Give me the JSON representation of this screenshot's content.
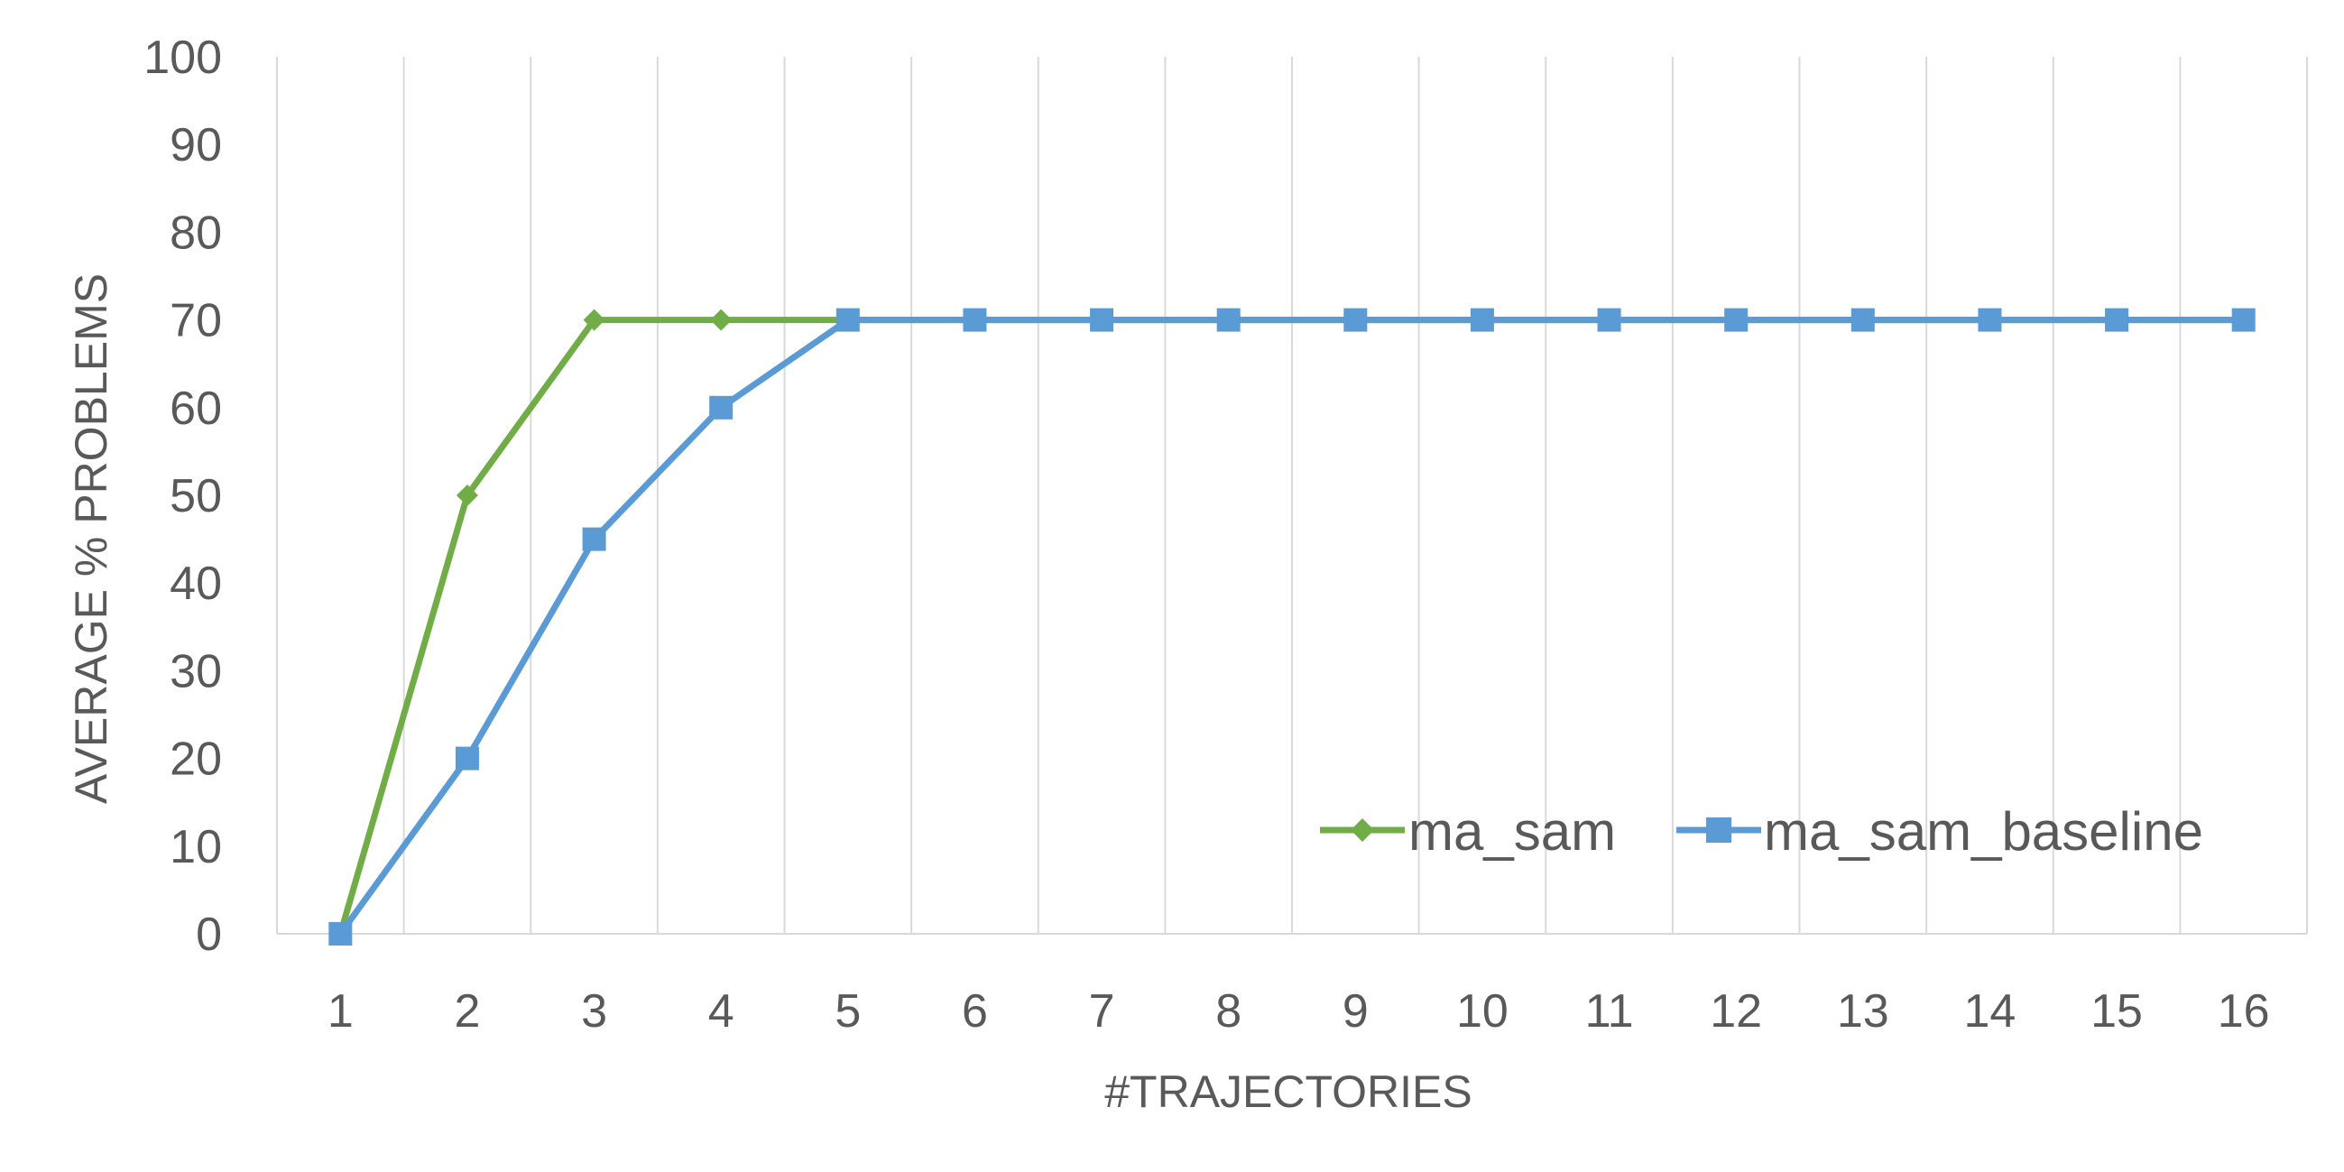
{
  "chart_data": {
    "type": "line",
    "title": "",
    "xlabel": "#TRAJECTORIES",
    "ylabel": "AVERAGE % PROBLEMS",
    "categories": [
      "1",
      "2",
      "3",
      "4",
      "5",
      "6",
      "7",
      "8",
      "9",
      "10",
      "11",
      "12",
      "13",
      "14",
      "15",
      "16"
    ],
    "ylim": [
      0,
      100
    ],
    "yticks": [
      0,
      10,
      20,
      30,
      40,
      50,
      60,
      70,
      80,
      90,
      100
    ],
    "grid": "vertical",
    "legend_position": "bottom-right",
    "series": [
      {
        "name": "ma_sam",
        "color": "#70ad47",
        "marker": "diamond",
        "values": [
          0,
          50,
          70,
          70,
          70,
          70,
          70,
          70,
          70,
          70,
          70,
          70,
          70,
          70,
          70,
          70
        ]
      },
      {
        "name": "ma_sam_baseline",
        "color": "#5b9bd5",
        "marker": "square",
        "values": [
          0,
          20,
          45,
          60,
          70,
          70,
          70,
          70,
          70,
          70,
          70,
          70,
          70,
          70,
          70,
          70
        ]
      }
    ]
  }
}
